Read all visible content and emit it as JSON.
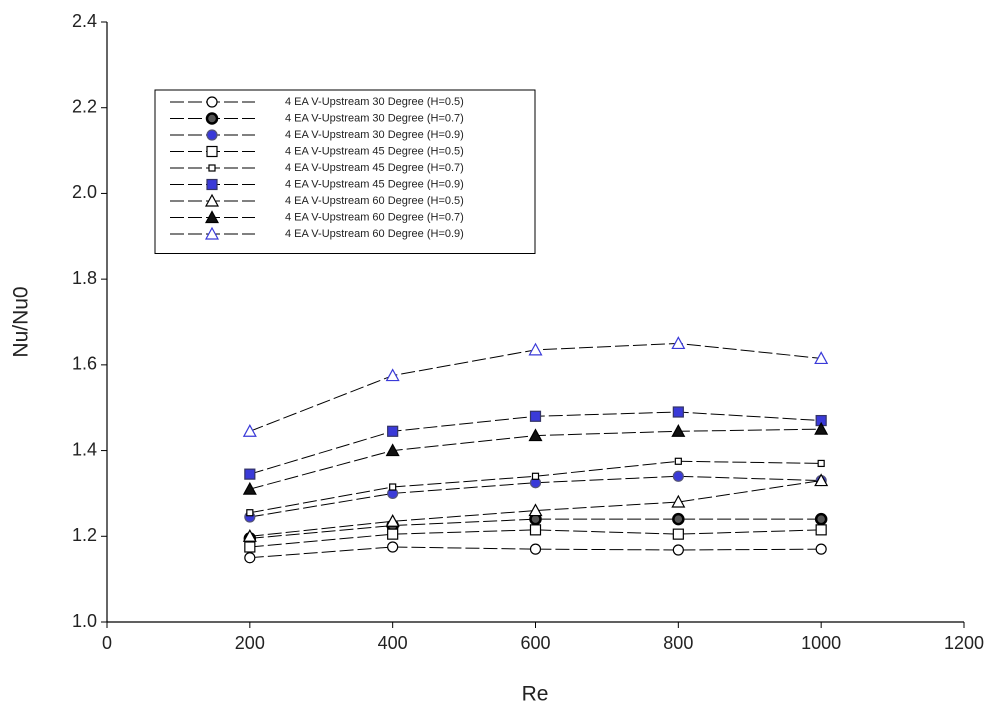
{
  "chart_data": {
    "type": "line",
    "x_label": "Re",
    "y_label": "Nu/Nu0",
    "x": [
      200,
      400,
      600,
      800,
      1000
    ],
    "xlim": [
      0,
      1200
    ],
    "xticks": [
      0,
      200,
      400,
      600,
      800,
      1000,
      1200
    ],
    "ylim": [
      1.0,
      2.4
    ],
    "yticks": [
      {
        "value": 1.0,
        "label": "1.0"
      },
      1.2,
      1.4,
      1.6,
      1.8,
      {
        "value": 2.0,
        "label": "2.0"
      },
      2.2,
      2.4
    ],
    "legend": "upper left",
    "series": [
      {
        "name": "4 EA V-Upstream 30 Degree (H=0.5)",
        "color": "#000000",
        "marker": "circle",
        "fill": "#ffffff",
        "values": [
          1.15,
          1.175,
          1.17,
          1.168,
          1.17
        ]
      },
      {
        "name": "4 EA V-Upstream 30 Degree (H=0.7)",
        "color": "#000000",
        "marker": "circle",
        "fill": "#555555",
        "values": [
          1.195,
          1.225,
          1.24,
          1.24,
          1.24
        ]
      },
      {
        "name": "4 EA V-Upstream 30 Degree (H=0.9)",
        "color": "#555577",
        "marker": "circle",
        "fill": "#3a3ad8",
        "values": [
          1.245,
          1.3,
          1.325,
          1.34,
          1.33
        ]
      },
      {
        "name": "4 EA V-Upstream 45 Degree (H=0.5)",
        "color": "#000000",
        "marker": "square",
        "fill": "#ffffff",
        "values": [
          1.175,
          1.205,
          1.215,
          1.205,
          1.215
        ]
      },
      {
        "name": "4 EA V-Upstream 45 Degree (H=0.7)",
        "color": "#000000",
        "marker": "small-square",
        "fill": "#ffffff",
        "values": [
          1.255,
          1.315,
          1.34,
          1.375,
          1.37
        ]
      },
      {
        "name": "4 EA V-Upstream 45 Degree (H=0.9)",
        "color": "#333366",
        "marker": "square",
        "fill": "#3a3ad8",
        "values": [
          1.345,
          1.445,
          1.48,
          1.49,
          1.47
        ]
      },
      {
        "name": "4 EA V-Upstream 60 Degree (H=0.5)",
        "color": "#000000",
        "marker": "triangle",
        "fill": "#ffffff",
        "values": [
          1.2,
          1.235,
          1.26,
          1.28,
          1.33
        ]
      },
      {
        "name": "4 EA V-Upstream 60 Degree (H=0.7)",
        "color": "#000000",
        "marker": "triangle",
        "fill": "#111111",
        "values": [
          1.31,
          1.4,
          1.435,
          1.445,
          1.45
        ]
      },
      {
        "name": "4 EA V-Upstream 60 Degree (H=0.9)",
        "color": "#3a3ad8",
        "marker": "triangle",
        "fill": "#ffffff",
        "values": [
          1.445,
          1.575,
          1.635,
          1.65,
          1.615
        ]
      }
    ]
  }
}
